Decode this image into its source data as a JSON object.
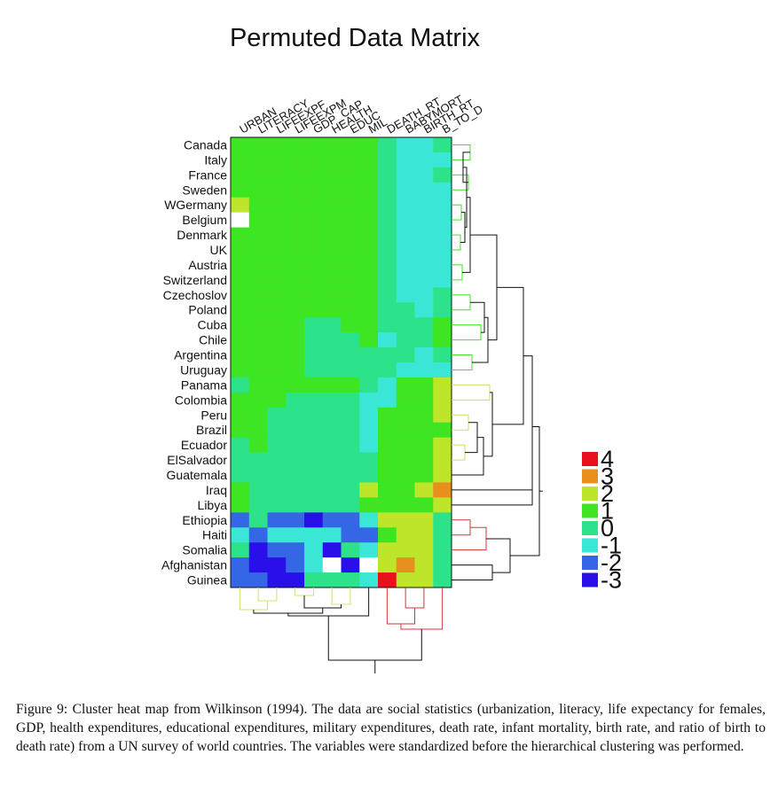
{
  "chart_data": {
    "type": "heatmap",
    "title": "Permuted Data Matrix",
    "columns": [
      "URBAN",
      "LITERACY",
      "LIFEEXPF",
      "LIFEEXPM",
      "GDP_CAP",
      "HEALTH",
      "EDUC",
      "MIL",
      "DEATH_RT",
      "BABYMORT",
      "BIRTH_RT",
      "B_TO_D"
    ],
    "rows": [
      "Canada",
      "Italy",
      "France",
      "Sweden",
      "WGermany",
      "Belgium",
      "Denmark",
      "UK",
      "Austria",
      "Switzerland",
      "Czechoslov",
      "Poland",
      "Cuba",
      "Chile",
      "Argentina",
      "Uruguay",
      "Panama",
      "Colombia",
      "Peru",
      "Brazil",
      "Ecuador",
      "ElSalvador",
      "Guatemala",
      "Iraq",
      "Libya",
      "Ethiopia",
      "Haiti",
      "Somalia",
      "Afghanistan",
      "Guinea"
    ],
    "values": [
      [
        1,
        1,
        1,
        1,
        1,
        1,
        1,
        1,
        0,
        -1,
        -1,
        0
      ],
      [
        1,
        1,
        1,
        1,
        1,
        1,
        1,
        1,
        0,
        -1,
        -1,
        -1
      ],
      [
        1,
        1,
        1,
        1,
        1,
        1,
        1,
        1,
        0,
        -1,
        -1,
        0
      ],
      [
        1,
        1,
        1,
        1,
        1,
        1,
        1,
        1,
        0,
        -1,
        -1,
        -1
      ],
      [
        2,
        1,
        1,
        1,
        1,
        1,
        1,
        1,
        0,
        -1,
        -1,
        -1
      ],
      [
        null,
        1,
        1,
        1,
        1,
        1,
        1,
        1,
        0,
        -1,
        -1,
        -1
      ],
      [
        1,
        1,
        1,
        1,
        1,
        1,
        1,
        1,
        0,
        -1,
        -1,
        -1
      ],
      [
        1,
        1,
        1,
        1,
        1,
        1,
        1,
        1,
        0,
        -1,
        -1,
        -1
      ],
      [
        1,
        1,
        1,
        1,
        1,
        1,
        1,
        1,
        0,
        -1,
        -1,
        -1
      ],
      [
        1,
        1,
        1,
        1,
        1,
        1,
        1,
        1,
        0,
        -1,
        -1,
        -1
      ],
      [
        1,
        1,
        1,
        1,
        1,
        1,
        1,
        1,
        0,
        -1,
        -1,
        0
      ],
      [
        1,
        1,
        1,
        1,
        1,
        1,
        1,
        1,
        0,
        0,
        -1,
        0
      ],
      [
        1,
        1,
        1,
        1,
        0,
        0,
        1,
        1,
        0,
        0,
        0,
        1
      ],
      [
        1,
        1,
        1,
        1,
        0,
        0,
        0,
        1,
        -1,
        0,
        0,
        1
      ],
      [
        1,
        1,
        1,
        1,
        0,
        0,
        0,
        0,
        0,
        0,
        -1,
        0
      ],
      [
        1,
        1,
        1,
        1,
        0,
        0,
        0,
        0,
        0,
        -1,
        -1,
        -1
      ],
      [
        0,
        1,
        1,
        1,
        1,
        1,
        1,
        0,
        -1,
        1,
        1,
        2
      ],
      [
        1,
        1,
        1,
        0,
        0,
        0,
        0,
        -1,
        -1,
        1,
        1,
        2
      ],
      [
        1,
        1,
        0,
        0,
        0,
        0,
        0,
        -1,
        1,
        1,
        1,
        2
      ],
      [
        1,
        1,
        0,
        0,
        0,
        0,
        0,
        -1,
        1,
        1,
        1,
        1
      ],
      [
        0,
        1,
        0,
        0,
        0,
        0,
        0,
        -1,
        1,
        1,
        1,
        2
      ],
      [
        0,
        0,
        0,
        0,
        0,
        0,
        0,
        0,
        1,
        1,
        1,
        2
      ],
      [
        0,
        0,
        0,
        0,
        0,
        0,
        0,
        0,
        1,
        1,
        1,
        2
      ],
      [
        1,
        0,
        0,
        0,
        0,
        0,
        0,
        2,
        1,
        1,
        2,
        3
      ],
      [
        1,
        0,
        0,
        0,
        0,
        0,
        0,
        1,
        1,
        1,
        1,
        2
      ],
      [
        -2,
        0,
        -2,
        -2,
        -3,
        -2,
        -2,
        -1,
        2,
        2,
        2,
        0
      ],
      [
        -1,
        -2,
        -1,
        -1,
        -1,
        -1,
        -2,
        -2,
        1,
        2,
        2,
        0
      ],
      [
        0,
        -3,
        -2,
        -2,
        -1,
        -3,
        0,
        -1,
        2,
        2,
        2,
        0
      ],
      [
        -2,
        -3,
        -3,
        -2,
        -1,
        null,
        -3,
        null,
        2,
        3,
        2,
        0
      ],
      [
        -2,
        -2,
        -3,
        -3,
        0,
        0,
        0,
        -1,
        4,
        2,
        2,
        0
      ]
    ],
    "legend": {
      "labels": [
        "4",
        "3",
        "2",
        "1",
        "0",
        "-1",
        "-2",
        "-3"
      ],
      "colors": [
        "#e8101c",
        "#e8901e",
        "#bde52a",
        "#3de523",
        "#2de38a",
        "#3ae6d6",
        "#3466e6",
        "#2a10e8"
      ]
    },
    "missing_color": "#ffffff"
  },
  "caption": "Figure 9: Cluster heat map from Wilkinson (1994). The data are social statistics (urbanization, literacy, life expectancy for females, GDP, health expenditures, educational expenditures, military expenditures, death rate, infant mortality, birth rate, and ratio of birth to death rate) from a UN survey of world countries. The variables were standardized before the hierarchical clustering was performed."
}
